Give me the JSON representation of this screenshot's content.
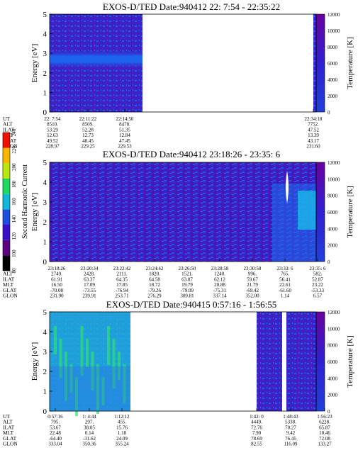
{
  "panels": [
    {
      "title": "EXOS-D/TED   Date:940412  22: 7:54 - 22:35:22",
      "ylabel": "Energy [eV]",
      "right_label": "Temperature [K]",
      "ylim": [
        0,
        5
      ],
      "yticks": [
        "0",
        "1",
        "2",
        "3",
        "4",
        "5"
      ],
      "cb_ticks": [
        "0",
        "2000",
        "4000",
        "6000",
        "8000",
        "10000",
        "12000"
      ],
      "rows": {
        "UT": {
          "label": "UT",
          "values": [
            "22: 7:54",
            "22:11:22",
            "22:14:50",
            "22:34:18"
          ]
        },
        "ALT": {
          "label": "ALT",
          "values": [
            "8510.",
            "8509.",
            "8478.",
            "7752."
          ]
        },
        "ILAT": {
          "label": "ILAT",
          "values": [
            "53.29",
            "52.28",
            "51.35",
            "47.52"
          ]
        },
        "MLT": {
          "label": "MLT",
          "values": [
            "12.63",
            "12.73",
            "12.84",
            "13.39"
          ]
        },
        "GLAT": {
          "label": "GLAT",
          "values": [
            "49.52",
            "48.45",
            "47.45",
            "43.17"
          ]
        },
        "GLON": {
          "label": "GLON",
          "values": [
            "228.97",
            "229.25",
            "229.53",
            "231.60"
          ]
        }
      }
    },
    {
      "title": "EXOS-D/TED   Date:940412  23:18:26 - 23:35: 6",
      "ylabel": "Energy [eV]",
      "right_label": "Temperature [K]",
      "ylim": [
        0,
        5
      ],
      "yticks": [
        "0",
        "1",
        "2",
        "3",
        "4",
        "5"
      ],
      "cb_ticks": [
        "0",
        "2000",
        "4000",
        "6000",
        "8000",
        "10000",
        "12000"
      ],
      "rows": {
        "UT": {
          "label": "UT",
          "values": [
            "23:18:26",
            "23:20:34",
            "23:22:42",
            "23:24:42",
            "23:26:50",
            "23:28:58",
            "23:30:58",
            "23:33: 6",
            "23:35: 6"
          ]
        },
        "ALT": {
          "label": "ALT",
          "values": [
            "2749.",
            "2428.",
            "2111.",
            "1820.",
            "1521.",
            "1240.",
            "996.",
            "765.",
            "582."
          ]
        },
        "ILAT": {
          "label": "ILAT",
          "values": [
            "61.91",
            "63.37",
            "64.35",
            "64.58",
            "63.87",
            "62.12",
            "59.67",
            "56.41",
            "52.87"
          ]
        },
        "MLT": {
          "label": "MLT",
          "values": [
            "16.50",
            "17.09",
            "17.85",
            "18.72",
            "19.79",
            "20.88",
            "21.79",
            "22.61",
            "23.22"
          ]
        },
        "GLAT": {
          "label": "GLAT",
          "values": [
            "-70.08",
            "-73.55",
            "-76.94",
            "-79.26",
            "-79.09",
            "-75.31",
            "-69.42",
            "-61.60",
            "-53.33"
          ]
        },
        "GLON": {
          "label": "GLON",
          "values": [
            "231.90",
            "239.91",
            "253.71",
            "276.29",
            "309.81",
            "337.14",
            "352.00",
            "1.14",
            "6.57"
          ]
        }
      }
    },
    {
      "title": "EXOS-D/TED   Date:940415  0:57:16 - 1:56:55",
      "ylabel": "Energy [eV]",
      "right_label": "Temperature [K]",
      "ylim": [
        0,
        5
      ],
      "yticks": [
        "0",
        "1",
        "2",
        "3",
        "4",
        "5"
      ],
      "cb_ticks": [
        "0",
        "2000",
        "4000",
        "6000",
        "8000",
        "10000",
        "12000"
      ],
      "rows": {
        "UT": {
          "label": "UT",
          "values": [
            "0:57:16",
            "1: 4:44",
            "1:12:12",
            "1:42: 0",
            "1:48:43",
            "1:56:23"
          ]
        },
        "ALT": {
          "label": "ALT",
          "values": [
            "795.",
            "297.",
            "455.",
            "4449.",
            "5338.",
            "6228."
          ]
        },
        "ILAT": {
          "label": "ILAT",
          "values": [
            "53.67",
            "38.05",
            "15.76",
            "72.76",
            "70.27",
            "65.87"
          ]
        },
        "MLT": {
          "label": "MLT",
          "values": [
            "22.48",
            "0.14",
            "1.18",
            "7.90",
            "9.42",
            "10.46"
          ]
        },
        "GLAT": {
          "label": "GLAT",
          "values": [
            "-64.40",
            "-31.62",
            "24.09",
            "78.69",
            "76.45",
            "72.08"
          ]
        },
        "GLON": {
          "label": "GLON",
          "values": [
            "333.04",
            "350.36",
            "355.24",
            "82.55",
            "116.09",
            "133.27"
          ]
        }
      }
    }
  ],
  "colorbar": {
    "label": "Second Harmonic Current",
    "ticks": [
      "80",
      "100",
      "120",
      "140",
      "160",
      "180",
      "200",
      "220",
      "240"
    ],
    "colors": [
      "#000000",
      "#5a0080",
      "#3a10c8",
      "#1e4ee0",
      "#10b8d8",
      "#20d860",
      "#b8e810",
      "#f8b800",
      "#f01000"
    ]
  },
  "chart_data": [
    {
      "type": "heatmap",
      "title": "EXOS-D/TED   Date:940412  22: 7:54 - 22:35:22",
      "ylabel": "Energy [eV]",
      "ylim": [
        0,
        5
      ],
      "x_ticks": [
        "22: 7:54",
        "22:11:22",
        "22:14:50",
        "22:34:18"
      ],
      "segments": [
        {
          "from": "22: 7:54",
          "to": "22:16:10",
          "note": "peak band near 2.5 eV"
        },
        {
          "from": "22:34:18",
          "to": "22:35:22"
        }
      ]
    },
    {
      "type": "heatmap",
      "title": "EXOS-D/TED   Date:940412  23:18:26 - 23:35: 6",
      "ylabel": "Energy [eV]",
      "ylim": [
        0,
        5
      ],
      "x_ticks": [
        "23:18:26",
        "23:20:34",
        "23:22:42",
        "23:24:42",
        "23:26:50",
        "23:28:58",
        "23:30:58",
        "23:33: 6",
        "23:35: 6"
      ],
      "segments": [
        {
          "from": "23:18:26",
          "to": "23:35: 6"
        }
      ]
    },
    {
      "type": "heatmap",
      "title": "EXOS-D/TED   Date:940415  0:57:16 - 1:56:55",
      "ylabel": "Energy [eV]",
      "ylim": [
        0,
        5
      ],
      "x_ticks": [
        "0:57:16",
        "1: 4:44",
        "1:12:12",
        "1:42: 0",
        "1:48:43",
        "1:56:23"
      ],
      "segments": [
        {
          "from": "0:57:16",
          "to": "1:12:40"
        },
        {
          "from": "1:41:30",
          "to": "1:47:50"
        },
        {
          "from": "1:48:30",
          "to": "1:56:55"
        }
      ]
    }
  ]
}
